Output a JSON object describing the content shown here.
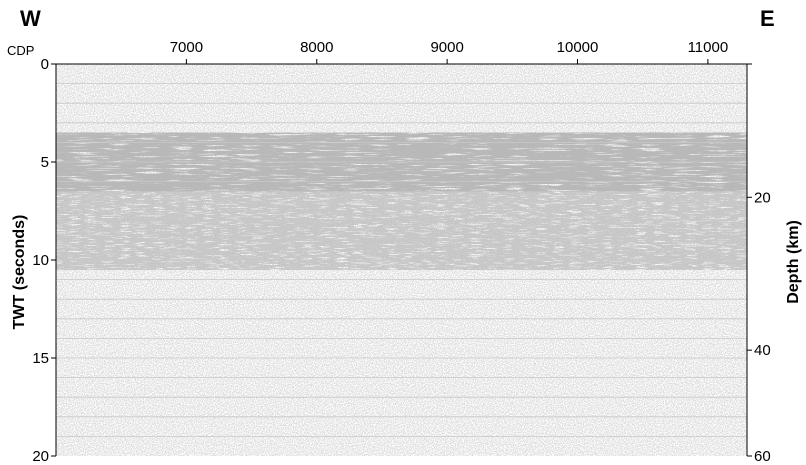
{
  "chart_data": {
    "type": "seismic-section",
    "direction_left": "W",
    "direction_right": "E",
    "x_axis_label": "CDP",
    "x_ticks": [
      7000,
      8000,
      9000,
      10000,
      11000
    ],
    "xlim": [
      6000,
      11300
    ],
    "left_axis_label": "TWT (seconds)",
    "left_ticks": [
      0,
      5,
      10,
      15,
      20
    ],
    "ylim_twt": [
      0,
      20
    ],
    "right_axis_label": "Depth (km)",
    "right_ticks": [
      20,
      40,
      60
    ],
    "depth_tick_twt_positions": [
      6.8,
      14.6,
      20
    ],
    "grid": "horizontal",
    "grid_twt_interval": 1,
    "reflectivity_zones": [
      {
        "twt_top": 3.5,
        "twt_bottom": 6.5,
        "intensity": "high"
      },
      {
        "twt_top": 6.5,
        "twt_bottom": 10.5,
        "intensity": "medium"
      },
      {
        "twt_top": 10.5,
        "twt_bottom": 20,
        "intensity": "low"
      }
    ]
  }
}
